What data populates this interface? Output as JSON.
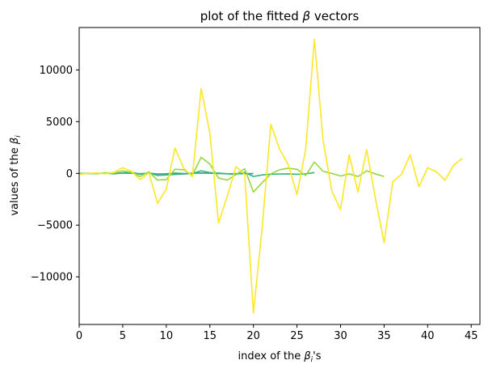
{
  "chart_data": {
    "type": "line",
    "title": "plot of the fitted β vectors",
    "xlabel": "index of the βᵢ's",
    "ylabel": "values of the βᵢ",
    "xlim": [
      0,
      46
    ],
    "ylim": [
      -14600,
      14100
    ],
    "xticks": [
      0,
      5,
      10,
      15,
      20,
      25,
      30,
      35,
      40,
      45
    ],
    "yticks": [
      -10000,
      -5000,
      0,
      5000,
      10000
    ],
    "ytick_labels": [
      "−10000",
      "−5000",
      "0",
      "5000",
      "10000"
    ],
    "grid": false,
    "series": [
      {
        "color": "#3a9a8c",
        "x": [
          0,
          1,
          2,
          3,
          4,
          5,
          6,
          7,
          8,
          9,
          10,
          11,
          12,
          13,
          14,
          15,
          16,
          17,
          18,
          19,
          20
        ],
        "values": [
          0,
          -10,
          0,
          10,
          -20,
          30,
          20,
          -30,
          20,
          -60,
          -40,
          30,
          -20,
          20,
          40,
          20,
          -10,
          -40,
          -20,
          -30,
          -20
        ]
      },
      {
        "color": "#35b779",
        "x": [
          0,
          1,
          2,
          3,
          4,
          5,
          6,
          7,
          8,
          9,
          10,
          11,
          12,
          13,
          14,
          15,
          16,
          17,
          18,
          19,
          20,
          21,
          22,
          23,
          24,
          25,
          26,
          27
        ],
        "values": [
          -20,
          10,
          -30,
          40,
          -50,
          60,
          120,
          -80,
          40,
          -200,
          -150,
          -100,
          -60,
          -10,
          250,
          80,
          30,
          -40,
          -100,
          100,
          -300,
          -150,
          -80,
          -60,
          -50,
          -90,
          -40,
          80
        ]
      },
      {
        "color": "#95d840",
        "x": [
          0,
          1,
          2,
          3,
          4,
          5,
          6,
          7,
          8,
          9,
          10,
          11,
          12,
          13,
          14,
          15,
          16,
          17,
          18,
          19,
          20,
          21,
          22,
          23,
          24,
          25,
          26,
          27,
          28,
          29,
          30,
          31,
          32,
          33,
          34,
          35
        ],
        "values": [
          -50,
          20,
          -40,
          60,
          30,
          250,
          100,
          -300,
          150,
          -650,
          -600,
          400,
          350,
          -150,
          1550,
          900,
          -450,
          -650,
          -100,
          450,
          -1800,
          -900,
          -50,
          350,
          500,
          400,
          -200,
          1100,
          200,
          0,
          -250,
          -50,
          -300,
          250,
          -50,
          -300
        ]
      },
      {
        "color": "#fde725",
        "x": [
          0,
          1,
          2,
          3,
          4,
          5,
          6,
          7,
          8,
          9,
          10,
          11,
          12,
          13,
          14,
          15,
          16,
          17,
          18,
          19,
          20,
          21,
          22,
          23,
          24,
          25,
          26,
          27,
          28,
          29,
          30,
          31,
          32,
          33,
          34,
          35,
          36,
          37,
          38,
          39,
          40,
          41,
          42,
          43,
          44
        ],
        "values": [
          -100,
          0,
          50,
          -50,
          100,
          550,
          200,
          -600,
          50,
          -2900,
          -1500,
          2450,
          500,
          -300,
          8200,
          3900,
          -4800,
          -2200,
          650,
          -100,
          -13500,
          -5300,
          4750,
          2350,
          850,
          -2050,
          2350,
          12950,
          3150,
          -1700,
          -3500,
          1800,
          -1800,
          2300,
          -2400,
          -6700,
          -800,
          -100,
          1800,
          -1300,
          550,
          150,
          -650,
          800,
          1450
        ]
      }
    ]
  }
}
